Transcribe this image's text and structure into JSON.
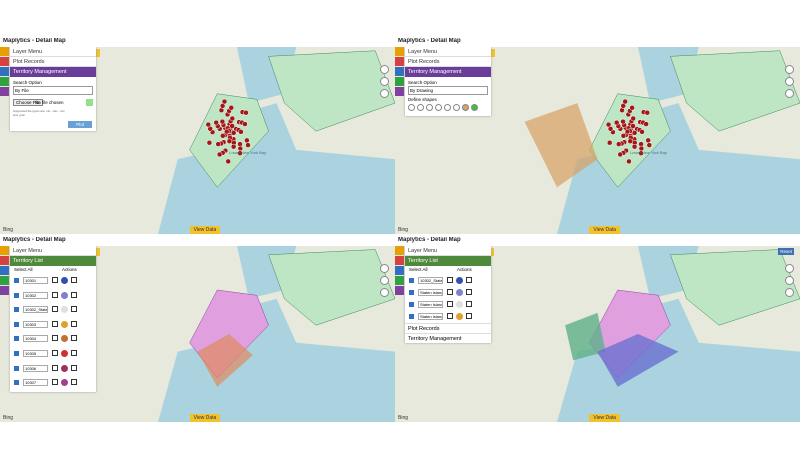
{
  "panels": [
    {
      "title": "Maplytics - Detail Map",
      "rows": [
        "Layer Menu",
        "Plot Records"
      ],
      "active": "Territory Management",
      "form": {
        "search_label": "Search Option",
        "search_value": "By File",
        "file_button": "Choose File",
        "file_status": "No file chosen",
        "file_note": "Supported file types are .xls, .xlsx, .csv and .json",
        "button": "Plot"
      },
      "map_labels": [
        "Lower New York Bay"
      ],
      "bing": "Bing",
      "view_data": "View Data"
    },
    {
      "title": "Maplytics - Detail Map",
      "rows": [
        "Layer Menu",
        "Plot Records"
      ],
      "active": "Territory Management",
      "form": {
        "search_label": "Search Option",
        "search_value": "By Drawing",
        "shapes_label": "Define shapes"
      },
      "map_labels": [
        "Lower New York Bay"
      ],
      "bing": "Bing",
      "view_data": "View Data"
    },
    {
      "title": "Maplytics - Detail Map",
      "rows": [
        "Layer Menu"
      ],
      "active": "Territory List",
      "list": {
        "select_all": "Select All",
        "actions": "Actions",
        "items": [
          "10301",
          "10302",
          "10302_Staten_Is",
          "10303",
          "10304",
          "10305",
          "10306",
          "10307"
        ]
      },
      "bing": "Bing",
      "view_data": "View Data"
    },
    {
      "title": "Maplytics - Detail Map",
      "rows": [
        "Layer Menu"
      ],
      "active": "Territory List",
      "list": {
        "select_all": "Select All",
        "actions": "Actions",
        "items": [
          "10302_Staten_Is",
          "Staten Island_N",
          "Staten Island_M",
          "Staten Island_Sc"
        ]
      },
      "footer_rows": [
        "Plot Records",
        "Territory Management"
      ],
      "reset": "Reset",
      "bing": "Bing",
      "view_data": "View Data"
    }
  ]
}
